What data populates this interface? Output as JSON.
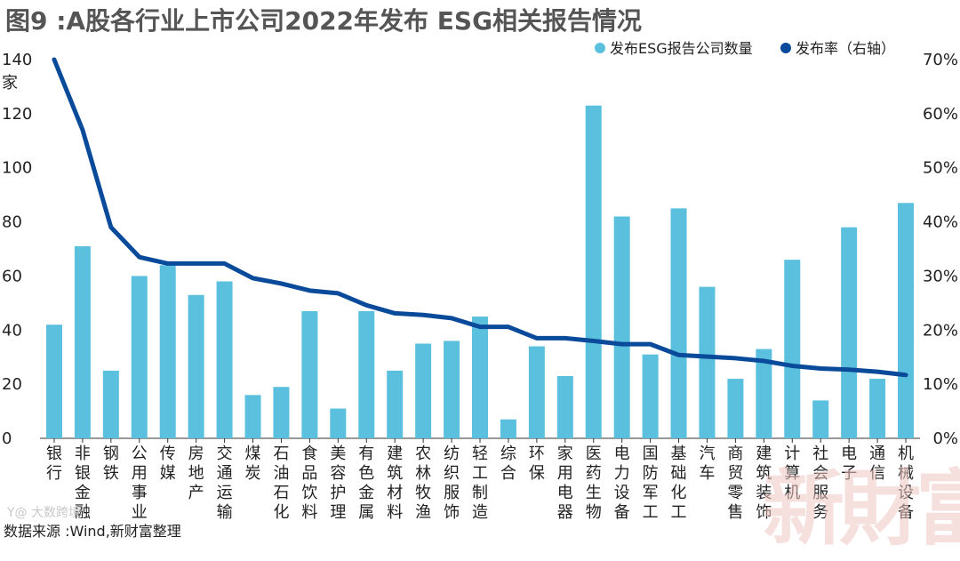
{
  "title": "图9 :A股各行业上市公司2022年发布 ESG相关报告情况",
  "source": "数据来源 :Wind,新财富整理",
  "watermark": "新財富",
  "stamp": "Y@ 大数跨境",
  "colors": {
    "bar": "#5bc0de",
    "line": "#0a4a9a",
    "title": "#555555"
  },
  "chart_data": {
    "type": "bar",
    "left_unit": "家",
    "yticks_left": [
      "0",
      "20",
      "40",
      "60",
      "80",
      "100",
      "120",
      "140"
    ],
    "yticks_right": [
      "0%",
      "10%",
      "20%",
      "30%",
      "40%",
      "50%",
      "60%",
      "70%"
    ],
    "ylim_left": [
      0,
      140
    ],
    "ylim_right": [
      0,
      70
    ],
    "legend": [
      "发布ESG报告公司数量",
      "发布率（右轴）"
    ],
    "categories": [
      "银行",
      "非银金融",
      "钢铁",
      "公用事业",
      "传媒",
      "房地产",
      "交通运输",
      "煤炭",
      "石油石化",
      "食品饮料",
      "美容护理",
      "有色金属",
      "建筑材料",
      "农林牧渔",
      "纺织服饰",
      "轻工制造",
      "综合",
      "环保",
      "家用电器",
      "医药生物",
      "电力设备",
      "国防军工",
      "基础化工",
      "汽车",
      "商贸零售",
      "建筑装饰",
      "计算机",
      "社会服务",
      "电子",
      "通信",
      "机械设备"
    ],
    "series": [
      {
        "name": "发布ESG报告公司数量",
        "type": "bar",
        "axis": "left",
        "values": [
          42,
          71,
          25,
          60,
          64,
          53,
          58,
          16,
          19,
          47,
          11,
          47,
          25,
          35,
          36,
          45,
          7,
          34,
          23,
          123,
          82,
          31,
          85,
          56,
          22,
          33,
          66,
          14,
          78,
          22,
          87
        ]
      },
      {
        "name": "发布率（右轴）",
        "type": "line",
        "axis": "right",
        "values": [
          70,
          57,
          39,
          33.5,
          32.3,
          32.3,
          32.3,
          29.6,
          28.6,
          27.3,
          26.8,
          24.6,
          23.1,
          22.8,
          22.2,
          20.6,
          20.6,
          18.5,
          18.5,
          18,
          17.4,
          17.4,
          15.4,
          15.1,
          14.8,
          14.3,
          13.4,
          12.9,
          12.7,
          12.3,
          11.7
        ]
      }
    ]
  }
}
